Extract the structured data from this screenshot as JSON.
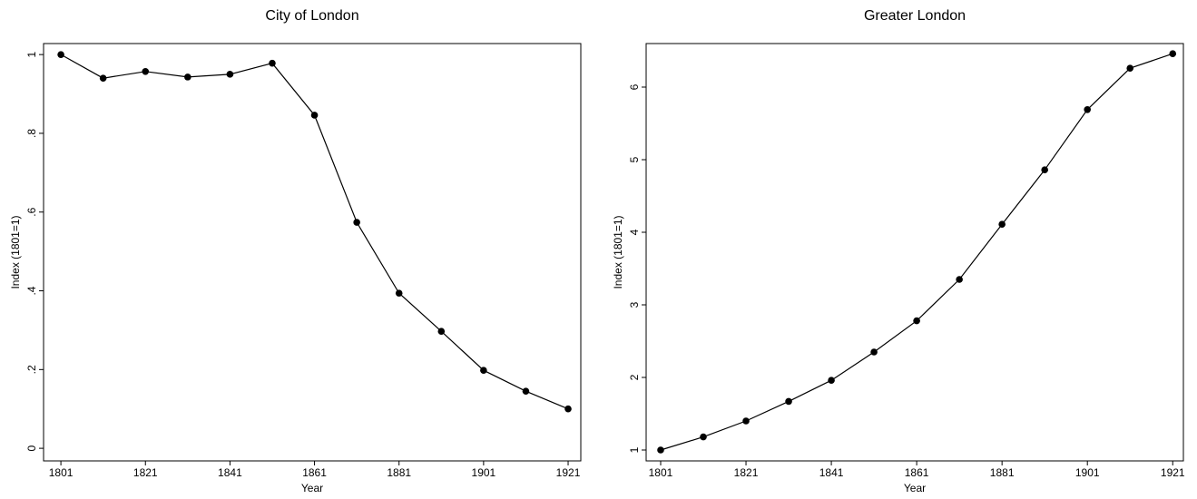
{
  "chart_data": [
    {
      "type": "line",
      "title": "City of London",
      "x_label": "Year",
      "y_label": "Index (1801=1)",
      "x": [
        1801,
        1811,
        1821,
        1831,
        1841,
        1851,
        1861,
        1871,
        1881,
        1891,
        1901,
        1911,
        1921
      ],
      "series": [
        {
          "name": "City of London",
          "color": "#000000",
          "values": [
            1,
            0.94,
            0.957,
            0.943,
            0.95,
            0.978,
            0.846,
            0.574,
            0.394,
            0.297,
            0.198,
            0.145,
            0.1
          ]
        }
      ],
      "xlim": [
        1796.9,
        1924.0
      ],
      "xticks": [
        1801,
        1821,
        1841,
        1861,
        1881,
        1901,
        1921
      ],
      "ylim": [
        -0.032,
        1.028
      ],
      "yticks": [
        0,
        {
          "value": 0.2,
          "label": ".2"
        },
        {
          "value": 0.4,
          "label": ".4"
        },
        {
          "value": 0.6,
          "label": ".6"
        },
        {
          "value": 0.8,
          "label": ".8"
        },
        1
      ],
      "grid": false
    },
    {
      "type": "line",
      "title": "Greater London",
      "x_label": "Year",
      "y_label": "Index (1801=1)",
      "x": [
        1801,
        1811,
        1821,
        1831,
        1841,
        1851,
        1861,
        1871,
        1881,
        1891,
        1901,
        1911,
        1921
      ],
      "series": [
        {
          "name": "Greater London",
          "color": "#000000",
          "values": [
            1,
            1.18,
            1.4,
            1.67,
            1.96,
            2.35,
            2.78,
            3.35,
            4.11,
            4.86,
            5.69,
            6.26,
            6.46
          ]
        }
      ],
      "xlim": [
        1797.6,
        1923.5
      ],
      "xticks": [
        1801,
        1821,
        1841,
        1861,
        1881,
        1901,
        1921
      ],
      "ylim": [
        0.85,
        6.6
      ],
      "yticks": [
        1,
        2,
        3,
        4,
        5,
        6
      ],
      "grid": false
    }
  ]
}
